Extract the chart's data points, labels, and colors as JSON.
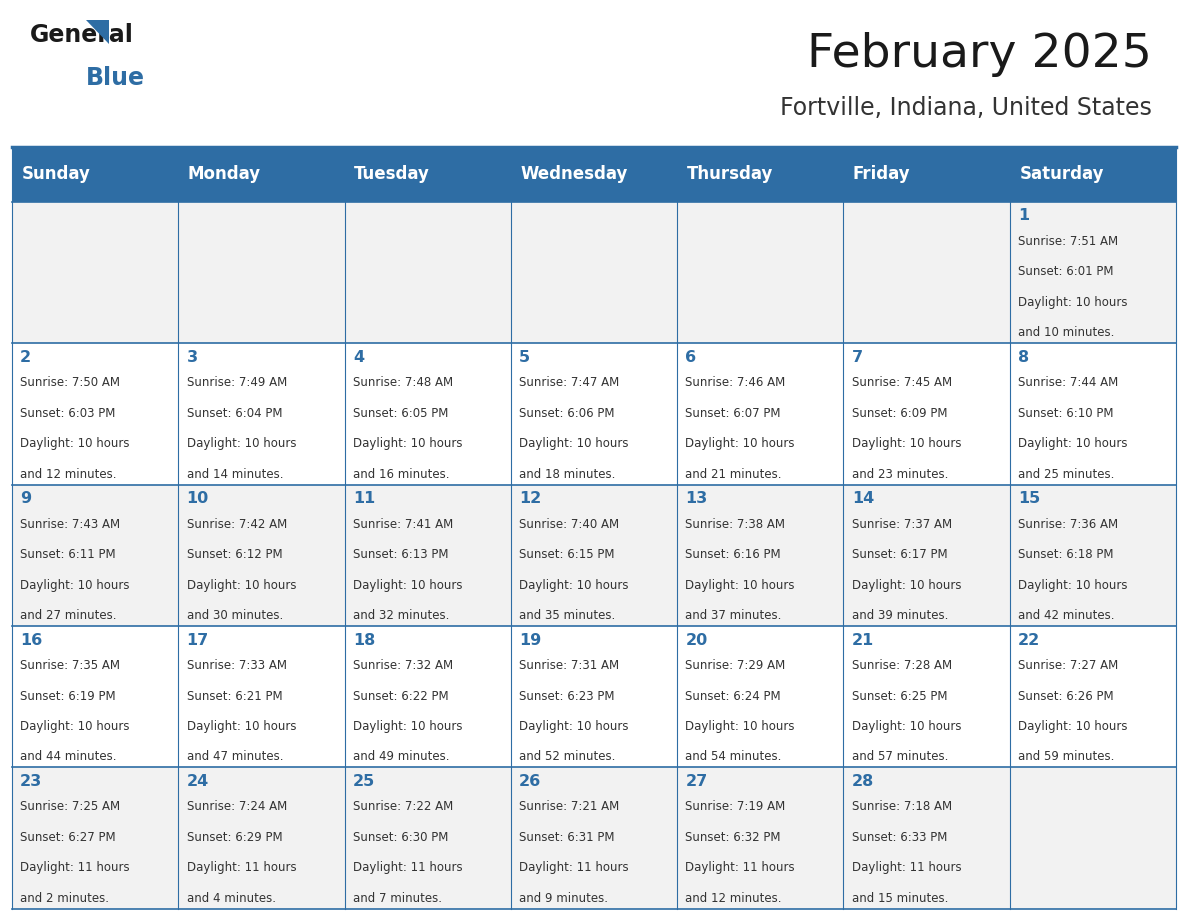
{
  "title": "February 2025",
  "subtitle": "Fortville, Indiana, United States",
  "header_color": "#2E6DA4",
  "header_text_color": "#FFFFFF",
  "cell_bg_even": "#F2F2F2",
  "cell_bg_odd": "#FFFFFF",
  "border_color": "#2E6DA4",
  "day_headers": [
    "Sunday",
    "Monday",
    "Tuesday",
    "Wednesday",
    "Thursday",
    "Friday",
    "Saturday"
  ],
  "title_color": "#1a1a1a",
  "subtitle_color": "#333333",
  "day_num_color": "#2E6DA4",
  "info_color": "#333333",
  "calendar": [
    [
      null,
      null,
      null,
      null,
      null,
      null,
      {
        "day": 1,
        "sunrise": "7:51 AM",
        "sunset": "6:01 PM",
        "daylight": "10 hours and 10 minutes."
      }
    ],
    [
      {
        "day": 2,
        "sunrise": "7:50 AM",
        "sunset": "6:03 PM",
        "daylight": "10 hours and 12 minutes."
      },
      {
        "day": 3,
        "sunrise": "7:49 AM",
        "sunset": "6:04 PM",
        "daylight": "10 hours and 14 minutes."
      },
      {
        "day": 4,
        "sunrise": "7:48 AM",
        "sunset": "6:05 PM",
        "daylight": "10 hours and 16 minutes."
      },
      {
        "day": 5,
        "sunrise": "7:47 AM",
        "sunset": "6:06 PM",
        "daylight": "10 hours and 18 minutes."
      },
      {
        "day": 6,
        "sunrise": "7:46 AM",
        "sunset": "6:07 PM",
        "daylight": "10 hours and 21 minutes."
      },
      {
        "day": 7,
        "sunrise": "7:45 AM",
        "sunset": "6:09 PM",
        "daylight": "10 hours and 23 minutes."
      },
      {
        "day": 8,
        "sunrise": "7:44 AM",
        "sunset": "6:10 PM",
        "daylight": "10 hours and 25 minutes."
      }
    ],
    [
      {
        "day": 9,
        "sunrise": "7:43 AM",
        "sunset": "6:11 PM",
        "daylight": "10 hours and 27 minutes."
      },
      {
        "day": 10,
        "sunrise": "7:42 AM",
        "sunset": "6:12 PM",
        "daylight": "10 hours and 30 minutes."
      },
      {
        "day": 11,
        "sunrise": "7:41 AM",
        "sunset": "6:13 PM",
        "daylight": "10 hours and 32 minutes."
      },
      {
        "day": 12,
        "sunrise": "7:40 AM",
        "sunset": "6:15 PM",
        "daylight": "10 hours and 35 minutes."
      },
      {
        "day": 13,
        "sunrise": "7:38 AM",
        "sunset": "6:16 PM",
        "daylight": "10 hours and 37 minutes."
      },
      {
        "day": 14,
        "sunrise": "7:37 AM",
        "sunset": "6:17 PM",
        "daylight": "10 hours and 39 minutes."
      },
      {
        "day": 15,
        "sunrise": "7:36 AM",
        "sunset": "6:18 PM",
        "daylight": "10 hours and 42 minutes."
      }
    ],
    [
      {
        "day": 16,
        "sunrise": "7:35 AM",
        "sunset": "6:19 PM",
        "daylight": "10 hours and 44 minutes."
      },
      {
        "day": 17,
        "sunrise": "7:33 AM",
        "sunset": "6:21 PM",
        "daylight": "10 hours and 47 minutes."
      },
      {
        "day": 18,
        "sunrise": "7:32 AM",
        "sunset": "6:22 PM",
        "daylight": "10 hours and 49 minutes."
      },
      {
        "day": 19,
        "sunrise": "7:31 AM",
        "sunset": "6:23 PM",
        "daylight": "10 hours and 52 minutes."
      },
      {
        "day": 20,
        "sunrise": "7:29 AM",
        "sunset": "6:24 PM",
        "daylight": "10 hours and 54 minutes."
      },
      {
        "day": 21,
        "sunrise": "7:28 AM",
        "sunset": "6:25 PM",
        "daylight": "10 hours and 57 minutes."
      },
      {
        "day": 22,
        "sunrise": "7:27 AM",
        "sunset": "6:26 PM",
        "daylight": "10 hours and 59 minutes."
      }
    ],
    [
      {
        "day": 23,
        "sunrise": "7:25 AM",
        "sunset": "6:27 PM",
        "daylight": "11 hours and 2 minutes."
      },
      {
        "day": 24,
        "sunrise": "7:24 AM",
        "sunset": "6:29 PM",
        "daylight": "11 hours and 4 minutes."
      },
      {
        "day": 25,
        "sunrise": "7:22 AM",
        "sunset": "6:30 PM",
        "daylight": "11 hours and 7 minutes."
      },
      {
        "day": 26,
        "sunrise": "7:21 AM",
        "sunset": "6:31 PM",
        "daylight": "11 hours and 9 minutes."
      },
      {
        "day": 27,
        "sunrise": "7:19 AM",
        "sunset": "6:32 PM",
        "daylight": "11 hours and 12 minutes."
      },
      {
        "day": 28,
        "sunrise": "7:18 AM",
        "sunset": "6:33 PM",
        "daylight": "11 hours and 15 minutes."
      },
      null
    ]
  ]
}
